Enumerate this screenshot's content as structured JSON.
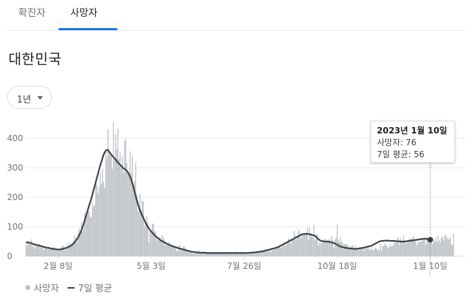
{
  "tabs": [
    {
      "label": "확진자",
      "active": false
    },
    {
      "label": "사망자",
      "active": true
    }
  ],
  "title": "대한민국",
  "range_button": {
    "label": "1년"
  },
  "tooltip": {
    "date": "2023년 1월 10일",
    "deaths_line": "사망자: 76",
    "avg_line": "7일 평균: 56"
  },
  "legend": {
    "deaths": "사망자",
    "avg": "7일 평균"
  },
  "colors": {
    "bar": "#bdc1c6",
    "line": "#3c4043",
    "accent": "#1a73e8",
    "grid": "#e8eaed"
  },
  "chart_data": {
    "type": "bar",
    "title": "",
    "xlabel": "",
    "ylabel": "",
    "ylim": [
      0,
      450
    ],
    "yticks": [
      0,
      100,
      200,
      300,
      400
    ],
    "xtick_labels": [
      {
        "label": "2월 8일",
        "day": 30
      },
      {
        "label": "5월 3일",
        "day": 114
      },
      {
        "label": "7월 26일",
        "day": 198
      },
      {
        "label": "10월 18일",
        "day": 282
      },
      {
        "label": "1월 10일",
        "day": 366
      }
    ],
    "x_start": "2022-01-09",
    "x_end": "2023-01-10",
    "series": [
      {
        "name": "사망자",
        "kind": "bar",
        "values": [
          45,
          36,
          52,
          41,
          48,
          58,
          32,
          38,
          25,
          43,
          33,
          41,
          44,
          29,
          39,
          34,
          20,
          31,
          30,
          28,
          25,
          28,
          27,
          27,
          23,
          33,
          30,
          27,
          23,
          17,
          28,
          20,
          30,
          36,
          34,
          24,
          21,
          32,
          44,
          33,
          47,
          38,
          45,
          53,
          70,
          60,
          47,
          78,
          95,
          85,
          116,
          84,
          93,
          147,
          127,
          150,
          153,
          154,
          134,
          133,
          182,
          168,
          174,
          245,
          243,
          213,
          234,
          282,
          245,
          297,
          251,
          231,
          362,
          336,
          431,
          363,
          343,
          347,
          296,
          456,
          332,
          414,
          363,
          433,
          328,
          353,
          298,
          340,
          282,
          392,
          398,
          317,
          286,
          273,
          356,
          283,
          340,
          237,
          255,
          317,
          208,
          154,
          168,
          211,
          153,
          188,
          187,
          102,
          118,
          137,
          114,
          47,
          92,
          86,
          111,
          110,
          87,
          83,
          70,
          54,
          64,
          67,
          49,
          71,
          62,
          56,
          36,
          46,
          37,
          49,
          40,
          35,
          40,
          31,
          32,
          35,
          19,
          17,
          36,
          38,
          20,
          23,
          33,
          33,
          26,
          20,
          22,
          18,
          17,
          12,
          15,
          8,
          16,
          17,
          10,
          21,
          15,
          20,
          11,
          12,
          17,
          12,
          9,
          11,
          15,
          9,
          11,
          9,
          11,
          13,
          14,
          10,
          12,
          8,
          9,
          12,
          11,
          12,
          14,
          10,
          14,
          17,
          9,
          12,
          14,
          15,
          8,
          7,
          11,
          15,
          9,
          7,
          14,
          9,
          11,
          15,
          15,
          10,
          7,
          13,
          12,
          11,
          8,
          11,
          15,
          14,
          17,
          9,
          13,
          18,
          15,
          17,
          22,
          13,
          19,
          19,
          26,
          15,
          18,
          24,
          21,
          13,
          27,
          20,
          23,
          28,
          32,
          31,
          33,
          37,
          29,
          32,
          40,
          46,
          35,
          40,
          49,
          59,
          60,
          44,
          56,
          54,
          87,
          71,
          56,
          71,
          89,
          84,
          60,
          80,
          69,
          77,
          72,
          81,
          97,
          57,
          98,
          73,
          73,
          66,
          105,
          56,
          71,
          73,
          36,
          48,
          42,
          50,
          46,
          59,
          50,
          58,
          47,
          56,
          59,
          51,
          68,
          55,
          30,
          57,
          63,
          108,
          55,
          48,
          65,
          50,
          45,
          38,
          43,
          42,
          41,
          34,
          28,
          37,
          34,
          38,
          21,
          37,
          27,
          28,
          24,
          25,
          31,
          23,
          31,
          20,
          34,
          26,
          26,
          31,
          22,
          23,
          31,
          22,
          22,
          27,
          30,
          21,
          24,
          19,
          44,
          19,
          35,
          35,
          44,
          38,
          36,
          27,
          32,
          41,
          33,
          35,
          42,
          51,
          45,
          59,
          64,
          39,
          63,
          50,
          48,
          71,
          52,
          42,
          53,
          54,
          60,
          59,
          58,
          64,
          69,
          58,
          48,
          37,
          48,
          49,
          51,
          51,
          54,
          58,
          61,
          39,
          67,
          50,
          45,
          47,
          61,
          42,
          55,
          50,
          64,
          48,
          70,
          55,
          48,
          64,
          65,
          54,
          69,
          73,
          64,
          58,
          58,
          65,
          42,
          38,
          76
        ]
      },
      {
        "name": "7일 평균",
        "kind": "line",
        "values": [
          48,
          47,
          46,
          47,
          45,
          44,
          42,
          41,
          40,
          39,
          38,
          37,
          36,
          35,
          34,
          33,
          32,
          31,
          30,
          29,
          29,
          28,
          27,
          26,
          25,
          25,
          24,
          24,
          23,
          23,
          23,
          23,
          24,
          25,
          26,
          27,
          28,
          29,
          31,
          33,
          35,
          37,
          40,
          44,
          48,
          53,
          58,
          64,
          71,
          79,
          88,
          98,
          110,
          122,
          135,
          148,
          160,
          172,
          184,
          196,
          210,
          224,
          238,
          252,
          266,
          280,
          294,
          308,
          320,
          332,
          344,
          352,
          358,
          361,
          360,
          355,
          350,
          345,
          340,
          336,
          332,
          328,
          322,
          318,
          314,
          310,
          306,
          302,
          298,
          296,
          293,
          290,
          285,
          278,
          270,
          260,
          248,
          235,
          220,
          205,
          190,
          178,
          166,
          156,
          146,
          138,
          130,
          121,
          113,
          106,
          100,
          94,
          89,
          84,
          80,
          76,
          72,
          68,
          65,
          62,
          59,
          56,
          53,
          51,
          49,
          47,
          45,
          43,
          41,
          39,
          38,
          36,
          35,
          33,
          32,
          31,
          30,
          28,
          27,
          26,
          25,
          24,
          23,
          22,
          21,
          20,
          19,
          18,
          17,
          16,
          15,
          15,
          14,
          14,
          13,
          13,
          13,
          12,
          12,
          12,
          12,
          12,
          12,
          11,
          11,
          11,
          11,
          11,
          11,
          11,
          11,
          11,
          11,
          11,
          11,
          11,
          11,
          11,
          11,
          11,
          11,
          11,
          11,
          11,
          11,
          11,
          11,
          11,
          11,
          11,
          11,
          11,
          11,
          11,
          11,
          11,
          11,
          11,
          11,
          11,
          11,
          12,
          12,
          12,
          12,
          13,
          13,
          13,
          14,
          14,
          15,
          15,
          16,
          16,
          17,
          18,
          19,
          20,
          21,
          22,
          23,
          24,
          25,
          26,
          27,
          28,
          29,
          30,
          32,
          34,
          36,
          38,
          40,
          42,
          44,
          46,
          48,
          50,
          52,
          54,
          56,
          58,
          60,
          62,
          64,
          66,
          68,
          70,
          72,
          74,
          75,
          75,
          76,
          76,
          76,
          75,
          75,
          74,
          73,
          72,
          71,
          69,
          66,
          62,
          58,
          55,
          53,
          52,
          51,
          51,
          50,
          50,
          50,
          49,
          49,
          48,
          47,
          46,
          45,
          43,
          41,
          39,
          37,
          35,
          33,
          32,
          31,
          30,
          29,
          28,
          28,
          27,
          27,
          26,
          26,
          26,
          25,
          25,
          25,
          26,
          26,
          27,
          27,
          28,
          28,
          29,
          30,
          31,
          32,
          33,
          34,
          35,
          36,
          38,
          40,
          42,
          44,
          46,
          48,
          50,
          51,
          52,
          52,
          53,
          53,
          53,
          53,
          53,
          53,
          52,
          52,
          52,
          52,
          52,
          51,
          51,
          51,
          50,
          50,
          50,
          50,
          50,
          50,
          51,
          51,
          52,
          52,
          53,
          53,
          54,
          54,
          55,
          55,
          56,
          56,
          57,
          58,
          58,
          59,
          59,
          60,
          59,
          59,
          58,
          57,
          56,
          56
        ]
      }
    ],
    "highlight_day": 366,
    "grid": true,
    "legend_position": "bottom-left"
  }
}
